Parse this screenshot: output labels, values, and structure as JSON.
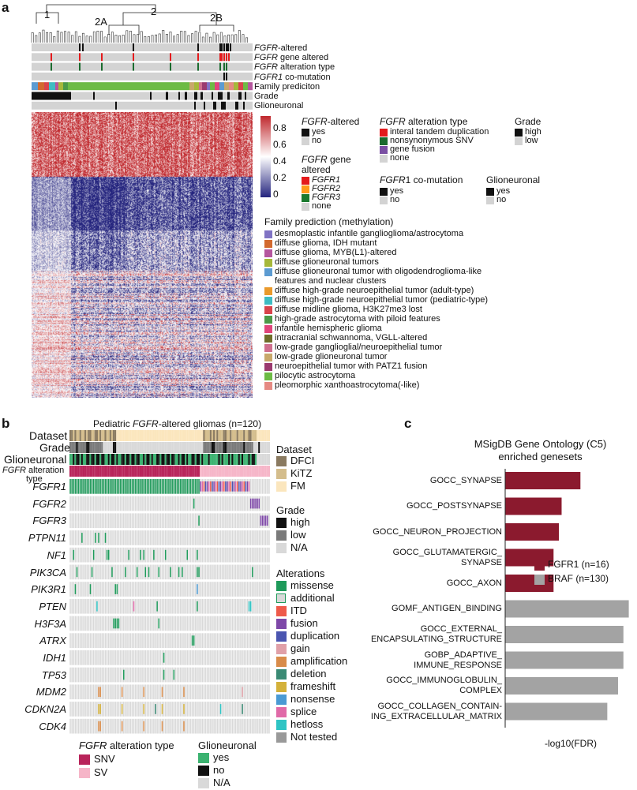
{
  "panel_a": {
    "letter": "a",
    "dendro_labels": [
      "1",
      "2",
      "2A",
      "2B"
    ],
    "track_labels": [
      {
        "it": "FGFR",
        "rest": "-altered"
      },
      {
        "it": "FGFR",
        "rest": " gene altered"
      },
      {
        "it": "FGFR",
        "rest": " alteration type"
      },
      {
        "it": "FGFR1",
        "rest": " co-mutation"
      },
      {
        "it": "",
        "rest": "Family prediciton"
      },
      {
        "it": "",
        "rest": "Grade"
      },
      {
        "it": "",
        "rest": "Glioneuronal"
      }
    ],
    "colorbar": {
      "ticks": [
        "0.8",
        "0.6",
        "0.4",
        "0.2",
        "0"
      ],
      "colors": [
        "#c0282d",
        "#ffffff",
        "#24247e"
      ]
    },
    "legend_fgfr_altered": {
      "title_it": "FGFR",
      "title_rest": "-altered",
      "items": [
        {
          "label": "yes",
          "color": "#111111"
        },
        {
          "label": "no",
          "color": "#d3d3d3"
        }
      ]
    },
    "legend_gene": {
      "title_it": "FGFR",
      "title_rest": " gene",
      "title2": "altered",
      "items": [
        {
          "label": "FGFR1",
          "color": "#e41a1c"
        },
        {
          "label": "FGFR2",
          "color": "#ff9a1a"
        },
        {
          "label": "FGFR3",
          "color": "#1a7a2e"
        },
        {
          "label": "none",
          "color": "#d3d3d3"
        }
      ]
    },
    "legend_alt_type": {
      "title_it": "FGFR",
      "title_rest": " alteration type",
      "items": [
        {
          "label": "interal tandem duplication",
          "color": "#e41a1c"
        },
        {
          "label": "nonsynonymous SNV",
          "color": "#1a6b2e"
        },
        {
          "label": "gene fusion",
          "color": "#7a4fa3"
        },
        {
          "label": "none",
          "color": "#d3d3d3"
        }
      ]
    },
    "legend_grade": {
      "title": "Grade",
      "items": [
        {
          "label": "high",
          "color": "#111111"
        },
        {
          "label": "low",
          "color": "#d3d3d3"
        }
      ]
    },
    "legend_comut": {
      "title_it": "FGFR",
      "title_rest": "1 co-mutation",
      "items": [
        {
          "label": "yes",
          "color": "#111111"
        },
        {
          "label": "no",
          "color": "#d3d3d3"
        }
      ]
    },
    "legend_glio": {
      "title": "Glioneuronal",
      "items": [
        {
          "label": "yes",
          "color": "#111111"
        },
        {
          "label": "no",
          "color": "#d3d3d3"
        }
      ]
    },
    "family": {
      "title": "Family prediction (methylation)",
      "items": [
        {
          "label": "desmoplastic infantile ganglioglioma/astrocytoma",
          "color": "#8073c4"
        },
        {
          "label": "diffuse glioma, IDH mutant",
          "color": "#d2692e"
        },
        {
          "label": "diffuse glioma, MYB(L1)-altered",
          "color": "#b5569e"
        },
        {
          "label": "diffuse glioneuronal tumors",
          "color": "#a6b83a"
        },
        {
          "label": "diffuse glioneuronal tumor with oligodendroglioma-like",
          "label2": "features and nuclear clusters",
          "color": "#5c9bd1"
        },
        {
          "label": "diffuse high-grade neuroepithelial tumor (adult-type)",
          "color": "#ea9a2c"
        },
        {
          "label": "diffuse high-grade neuroepithelial tumor (pediatric-type)",
          "color": "#3fbcc2"
        },
        {
          "label": "diffuse midline glioma, H3K27me3 lost",
          "color": "#d9434b"
        },
        {
          "label": "high-grade astrocytoma with piloid features",
          "color": "#4c9a48"
        },
        {
          "label": "infantile hemispheric glioma",
          "color": "#e0457b"
        },
        {
          "label": "intracranial schwannoma, VGLL-altered",
          "color": "#6e6e2a"
        },
        {
          "label": "low-grade ganglioglial/neuroepithelial tumor",
          "color": "#cf6f8e"
        },
        {
          "label": "low-grade glioneuronal tumor",
          "color": "#c8a86a"
        },
        {
          "label": "neuroepithelial tumor with PATZ1 fusion",
          "color": "#9b3a6f"
        },
        {
          "label": "pilocytic astrocytoma",
          "color": "#6dbb45"
        },
        {
          "label": "pleomorphic xanthoastrocytoma(-like)",
          "color": "#e58a83"
        }
      ]
    }
  },
  "panel_b": {
    "letter": "b",
    "title_pre": "Pediatric ",
    "title_it": "FGFR",
    "title_post": "-altered gliomas (n=120)",
    "row_labels": [
      "Dataset",
      "Grade",
      "Glioneuronal"
    ],
    "alt_type_label_it": "FGFR",
    "alt_type_label_rest": " alteration",
    "alt_type_label2": "type",
    "genes": [
      "FGFR1",
      "FGFR2",
      "FGFR3",
      "PTPN11",
      "NF1",
      "PIK3CA",
      "PIK3R1",
      "PTEN",
      "H3F3A",
      "ATRX",
      "IDH1",
      "TP53",
      "MDM2",
      "CDKN2A",
      "CDK4"
    ],
    "legend_dataset": {
      "title": "Dataset",
      "items": [
        {
          "label": "DFCI",
          "color": "#8a7a60"
        },
        {
          "label": "KiTZ",
          "color": "#d4bd8c"
        },
        {
          "label": "FM",
          "color": "#fbe6bd"
        }
      ]
    },
    "legend_grade": {
      "title": "Grade",
      "items": [
        {
          "label": "high",
          "color": "#111111"
        },
        {
          "label": "low",
          "color": "#7a7a7a"
        },
        {
          "label": "N/A",
          "color": "#d9d9d9"
        }
      ]
    },
    "legend_alterations": {
      "title": "Alterations",
      "items": [
        {
          "label": "missense",
          "color": "#1e9a5a"
        },
        {
          "label": "additional",
          "color": "#d9d9d9"
        },
        {
          "label": "ITD",
          "color": "#ee5a4a"
        },
        {
          "label": "fusion",
          "color": "#7e48a8"
        },
        {
          "label": "duplication",
          "color": "#4a55b0"
        },
        {
          "label": "gain",
          "color": "#e0a0a8"
        },
        {
          "label": "amplification",
          "color": "#d98c4a"
        },
        {
          "label": "deletion",
          "color": "#3a8a74"
        },
        {
          "label": "frameshift",
          "color": "#d4b13a"
        },
        {
          "label": "nonsense",
          "color": "#4a9ad4"
        },
        {
          "label": "splice",
          "color": "#e06aa8"
        },
        {
          "label": "hetloss",
          "color": "#2ec4c4"
        },
        {
          "label": "Not tested",
          "color": "#999999"
        }
      ]
    },
    "legend_alt_type": {
      "title_it": "FGFR",
      "title_rest": " alteration type",
      "items": [
        {
          "label": "SNV",
          "color": "#b8245a"
        },
        {
          "label": "SV",
          "color": "#f6b5c8"
        }
      ]
    },
    "legend_glio": {
      "title": "Glioneuronal",
      "items": [
        {
          "label": "yes",
          "color": "#3cb371"
        },
        {
          "label": "no",
          "color": "#111111"
        },
        {
          "label": "N/A",
          "color": "#d9d9d9"
        }
      ]
    }
  },
  "panel_c": {
    "letter": "c",
    "title": "MSigDB Gene Ontology (C5)",
    "title2": "enriched genesets",
    "chart_data": {
      "type": "bar",
      "orientation": "horizontal",
      "categories": [
        [
          "GOCC_SYNAPSE"
        ],
        [
          "GOCC_POSTSYNAPSE"
        ],
        [
          "GOCC_NEURON_PROJECTION"
        ],
        [
          "GOCC_GLUTAMATERGIC_",
          "SYNAPSE"
        ],
        [
          "GOCC_AXON"
        ],
        [
          "GOMF_ANTIGEN_BINDING"
        ],
        [
          "GOCC_EXTERNAL_",
          "ENCAPSULATING_STRUCTURE"
        ],
        [
          "GOBP_ADAPTIVE_",
          "IMMUNE_RESPONSE"
        ],
        [
          "GOCC_IMMUNOGLOBULIN_",
          "COMPLEX"
        ],
        [
          "GOCC_COLLAGEN_CONTAIN-",
          "ING_EXTRACELLULAR_MATRIX"
        ]
      ],
      "values": [
        28,
        21,
        20,
        18,
        18,
        46,
        44,
        44,
        42,
        38
      ],
      "group": [
        "FGFR1 (n=16)",
        "FGFR1 (n=16)",
        "FGFR1 (n=16)",
        "FGFR1 (n=16)",
        "FGFR1 (n=16)",
        "BRAF (n=130)",
        "BRAF (n=130)",
        "BRAF (n=130)",
        "BRAF (n=130)",
        "BRAF (n=130)"
      ],
      "series": [
        {
          "name": "FGFR1 (n=16)",
          "color": "#8b1a2e"
        },
        {
          "name": "BRAF (n=130)",
          "color": "#a3a3a3"
        }
      ],
      "xlabel": "-log10(FDR)",
      "xticks": [
        "0",
        "10",
        "20",
        "30",
        "40"
      ],
      "xlim": [
        0,
        47
      ]
    }
  }
}
